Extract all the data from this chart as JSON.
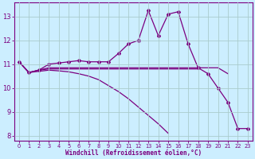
{
  "xlabel": "Windchill (Refroidissement éolien,°C)",
  "x_values": [
    0,
    1,
    2,
    3,
    4,
    5,
    6,
    7,
    8,
    9,
    10,
    11,
    12,
    13,
    14,
    15,
    16,
    17,
    18,
    19,
    20,
    21,
    22,
    23
  ],
  "line1_y": [
    11.1,
    10.65,
    10.75,
    11.0,
    11.05,
    11.1,
    11.15,
    11.1,
    11.1,
    11.1,
    11.45,
    11.85,
    12.0,
    13.25,
    12.2,
    13.1,
    13.2,
    11.85,
    10.85,
    10.6,
    10.0,
    9.4,
    8.3,
    8.3
  ],
  "line2_y": [
    11.1,
    10.65,
    10.75,
    10.85,
    10.85,
    10.85,
    10.85,
    10.85,
    10.85,
    10.85,
    10.85,
    10.85,
    10.85,
    10.85,
    10.85,
    10.85,
    10.85,
    10.85,
    10.85,
    10.85,
    10.85,
    10.6,
    null,
    null
  ],
  "line3_y": [
    11.1,
    10.65,
    10.75,
    10.8,
    10.8,
    10.8,
    10.8,
    10.8,
    10.8,
    10.8,
    10.8,
    10.8,
    10.8,
    10.8,
    10.8,
    10.8,
    10.8,
    10.8,
    10.8,
    null,
    null,
    null,
    null,
    null
  ],
  "line4_y": [
    11.1,
    10.65,
    10.7,
    10.75,
    10.72,
    10.68,
    10.6,
    10.5,
    10.35,
    10.1,
    9.85,
    9.55,
    9.2,
    8.85,
    8.5,
    8.1,
    null,
    null,
    null,
    null,
    null,
    null,
    null,
    null
  ],
  "line_color": "#7b0080",
  "bg_color": "#cceeff",
  "grid_color": "#aacccc",
  "ylim_min": 7.8,
  "ylim_max": 13.6,
  "xlim_min": -0.5,
  "xlim_max": 23.5,
  "yticks": [
    8,
    9,
    10,
    11,
    12,
    13
  ],
  "xticks": [
    0,
    1,
    2,
    3,
    4,
    5,
    6,
    7,
    8,
    9,
    10,
    11,
    12,
    13,
    14,
    15,
    16,
    17,
    18,
    19,
    20,
    21,
    22,
    23
  ]
}
